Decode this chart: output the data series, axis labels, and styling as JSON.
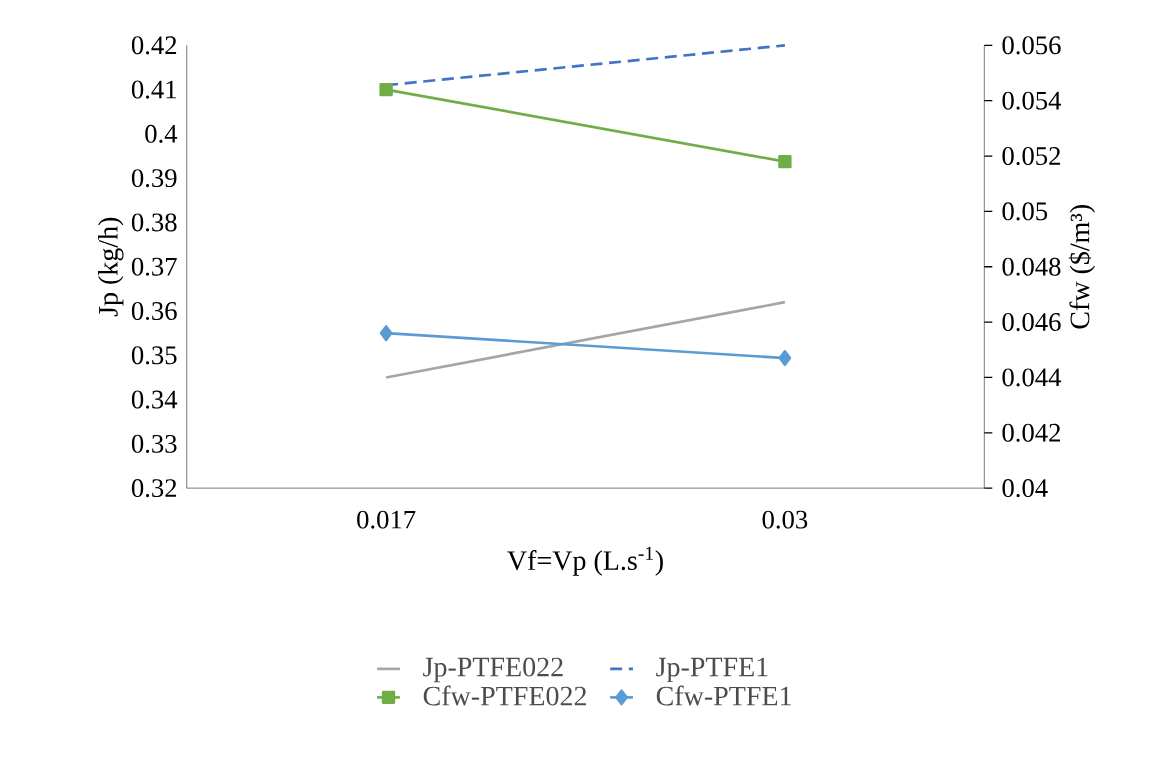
{
  "chart_data": {
    "type": "line",
    "xlabel": "Vf=Vp (L.s$^{-1}$)",
    "ylabel": "Jp (kg/h)",
    "y2label": "Cfw ($/m³)",
    "categories": [
      "0.017",
      "0.03"
    ],
    "series": [
      {
        "name": "Jp-PTFE022",
        "color": "#a5a5a5",
        "values": [
          0.345,
          0.362
        ],
        "axis": "y",
        "line_style": "solid",
        "marker": "none"
      },
      {
        "name": "Jp-PTFE1",
        "color": "#4472c4",
        "values": [
          0.411,
          0.42
        ],
        "axis": "y",
        "line_style": "dashed",
        "marker": "none"
      },
      {
        "name": "Cfw-PTFE022",
        "color": "#70ad47",
        "values": [
          0.0544,
          0.0518
        ],
        "axis": "y2",
        "line_style": "solid",
        "marker": "square"
      },
      {
        "name": "Cfw-PTFE1",
        "color": "#5b9bd5",
        "values": [
          0.0456,
          0.0447
        ],
        "axis": "y2",
        "line_style": "solid",
        "marker": "diamond"
      }
    ],
    "ylim": [
      0.32,
      0.42
    ],
    "yticks": [
      0.32,
      0.33,
      0.34,
      0.35,
      0.36,
      0.37,
      0.38,
      0.39,
      0.4,
      0.41,
      0.42
    ],
    "y2lim": [
      0.04,
      0.056
    ],
    "y2ticks": [
      0.04,
      0.042,
      0.044,
      0.046,
      0.048,
      0.05,
      0.052,
      0.054,
      0.056
    ],
    "grid": false,
    "legend": "bottom"
  }
}
